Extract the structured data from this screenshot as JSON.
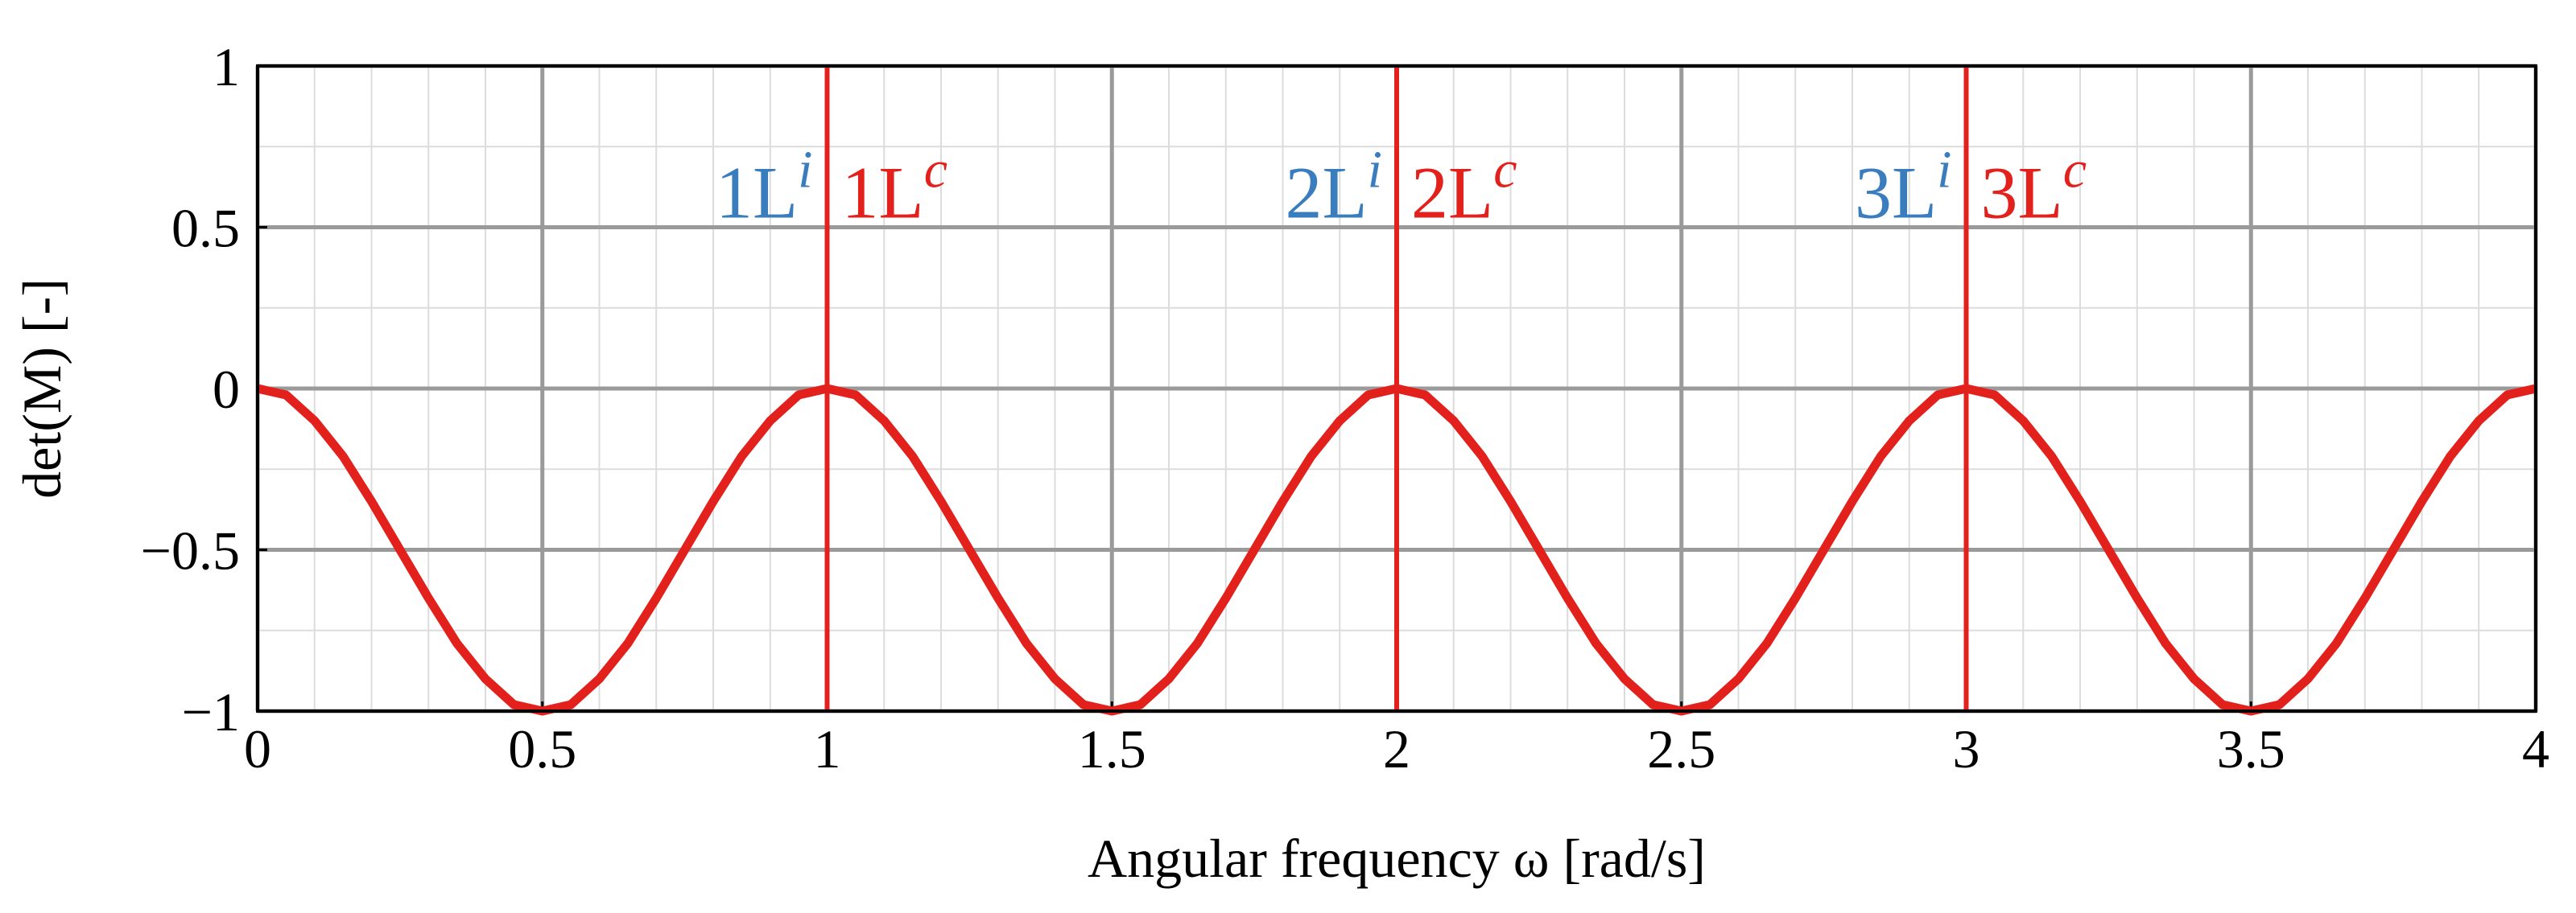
{
  "chart_data": {
    "type": "line",
    "x_label": "Angular frequency ω [rad/s]",
    "y_label": "det(M) [-]",
    "color": "#e3211c",
    "x": [
      0,
      0.05,
      0.1,
      0.15,
      0.2,
      0.25,
      0.3,
      0.35,
      0.4,
      0.45,
      0.5,
      0.55,
      0.6,
      0.65,
      0.7,
      0.75,
      0.8,
      0.85,
      0.9,
      0.95,
      1,
      1.05,
      1.1,
      1.15,
      1.2,
      1.25,
      1.3,
      1.35,
      1.4,
      1.45,
      1.5,
      1.55,
      1.6,
      1.65,
      1.7,
      1.75,
      1.8,
      1.85,
      1.9,
      1.95,
      2,
      2.05,
      2.1,
      2.15,
      2.2,
      2.25,
      2.3,
      2.35,
      2.4,
      2.45,
      2.5,
      2.55,
      2.6,
      2.65,
      2.7,
      2.75,
      2.8,
      2.85,
      2.9,
      2.95,
      3,
      3.05,
      3.1,
      3.15,
      3.2,
      3.25,
      3.3,
      3.35,
      3.4,
      3.45,
      3.5,
      3.55,
      3.6,
      3.65,
      3.7,
      3.75,
      3.8,
      3.85,
      3.9,
      3.95,
      4
    ],
    "values": [
      0,
      -0.02,
      -0.1,
      -0.21,
      -0.35,
      -0.5,
      -0.65,
      -0.79,
      -0.9,
      -0.98,
      -1,
      -0.98,
      -0.9,
      -0.79,
      -0.65,
      -0.5,
      -0.35,
      -0.21,
      -0.1,
      -0.02,
      0,
      -0.02,
      -0.1,
      -0.21,
      -0.35,
      -0.5,
      -0.65,
      -0.79,
      -0.9,
      -0.98,
      -1,
      -0.98,
      -0.9,
      -0.79,
      -0.65,
      -0.5,
      -0.35,
      -0.21,
      -0.1,
      -0.02,
      0,
      -0.02,
      -0.1,
      -0.21,
      -0.35,
      -0.5,
      -0.65,
      -0.79,
      -0.9,
      -0.98,
      -1,
      -0.98,
      -0.9,
      -0.79,
      -0.65,
      -0.5,
      -0.35,
      -0.21,
      -0.1,
      -0.02,
      0,
      -0.02,
      -0.1,
      -0.21,
      -0.35,
      -0.5,
      -0.65,
      -0.79,
      -0.9,
      -0.98,
      -1,
      -0.98,
      -0.9,
      -0.79,
      -0.65,
      -0.5,
      -0.35,
      -0.21,
      -0.1,
      -0.02,
      0
    ],
    "xlim": [
      0,
      4
    ],
    "ylim": [
      -1,
      1
    ],
    "xticks": [
      0,
      0.5,
      1,
      1.5,
      2,
      2.5,
      3,
      3.5,
      4
    ],
    "yticks": [
      {
        "value": -1,
        "label": "−1"
      },
      {
        "value": -0.5,
        "label": "−0.5"
      },
      0,
      0.5,
      1
    ],
    "x_minor_ticks": [
      0.1,
      0.2,
      0.3,
      0.4,
      0.6,
      0.7,
      0.8,
      0.9,
      1.1,
      1.2,
      1.3,
      1.4,
      1.6,
      1.7,
      1.8,
      1.9,
      2.1,
      2.2,
      2.3,
      2.4,
      2.6,
      2.7,
      2.8,
      2.9,
      3.1,
      3.2,
      3.3,
      3.4,
      3.6,
      3.7,
      3.8,
      3.9
    ],
    "y_minor_ticks": [
      -0.75,
      -0.25,
      0.25,
      0.75
    ],
    "grid": true,
    "vlines": [
      {
        "x": 1,
        "color": "#e3211c",
        "left": {
          "text": "1L",
          "sup": "i",
          "color": "#3a7dbf"
        },
        "right": {
          "text": "1L",
          "sup": "c",
          "color": "#e3211c"
        }
      },
      {
        "x": 2,
        "color": "#e3211c",
        "left": {
          "text": "2L",
          "sup": "i",
          "color": "#3a7dbf"
        },
        "right": {
          "text": "2L",
          "sup": "c",
          "color": "#e3211c"
        }
      },
      {
        "x": 3,
        "color": "#e3211c",
        "left": {
          "text": "3L",
          "sup": "i",
          "color": "#3a7dbf"
        },
        "right": {
          "text": "3L",
          "sup": "c",
          "color": "#e3211c"
        }
      }
    ]
  }
}
